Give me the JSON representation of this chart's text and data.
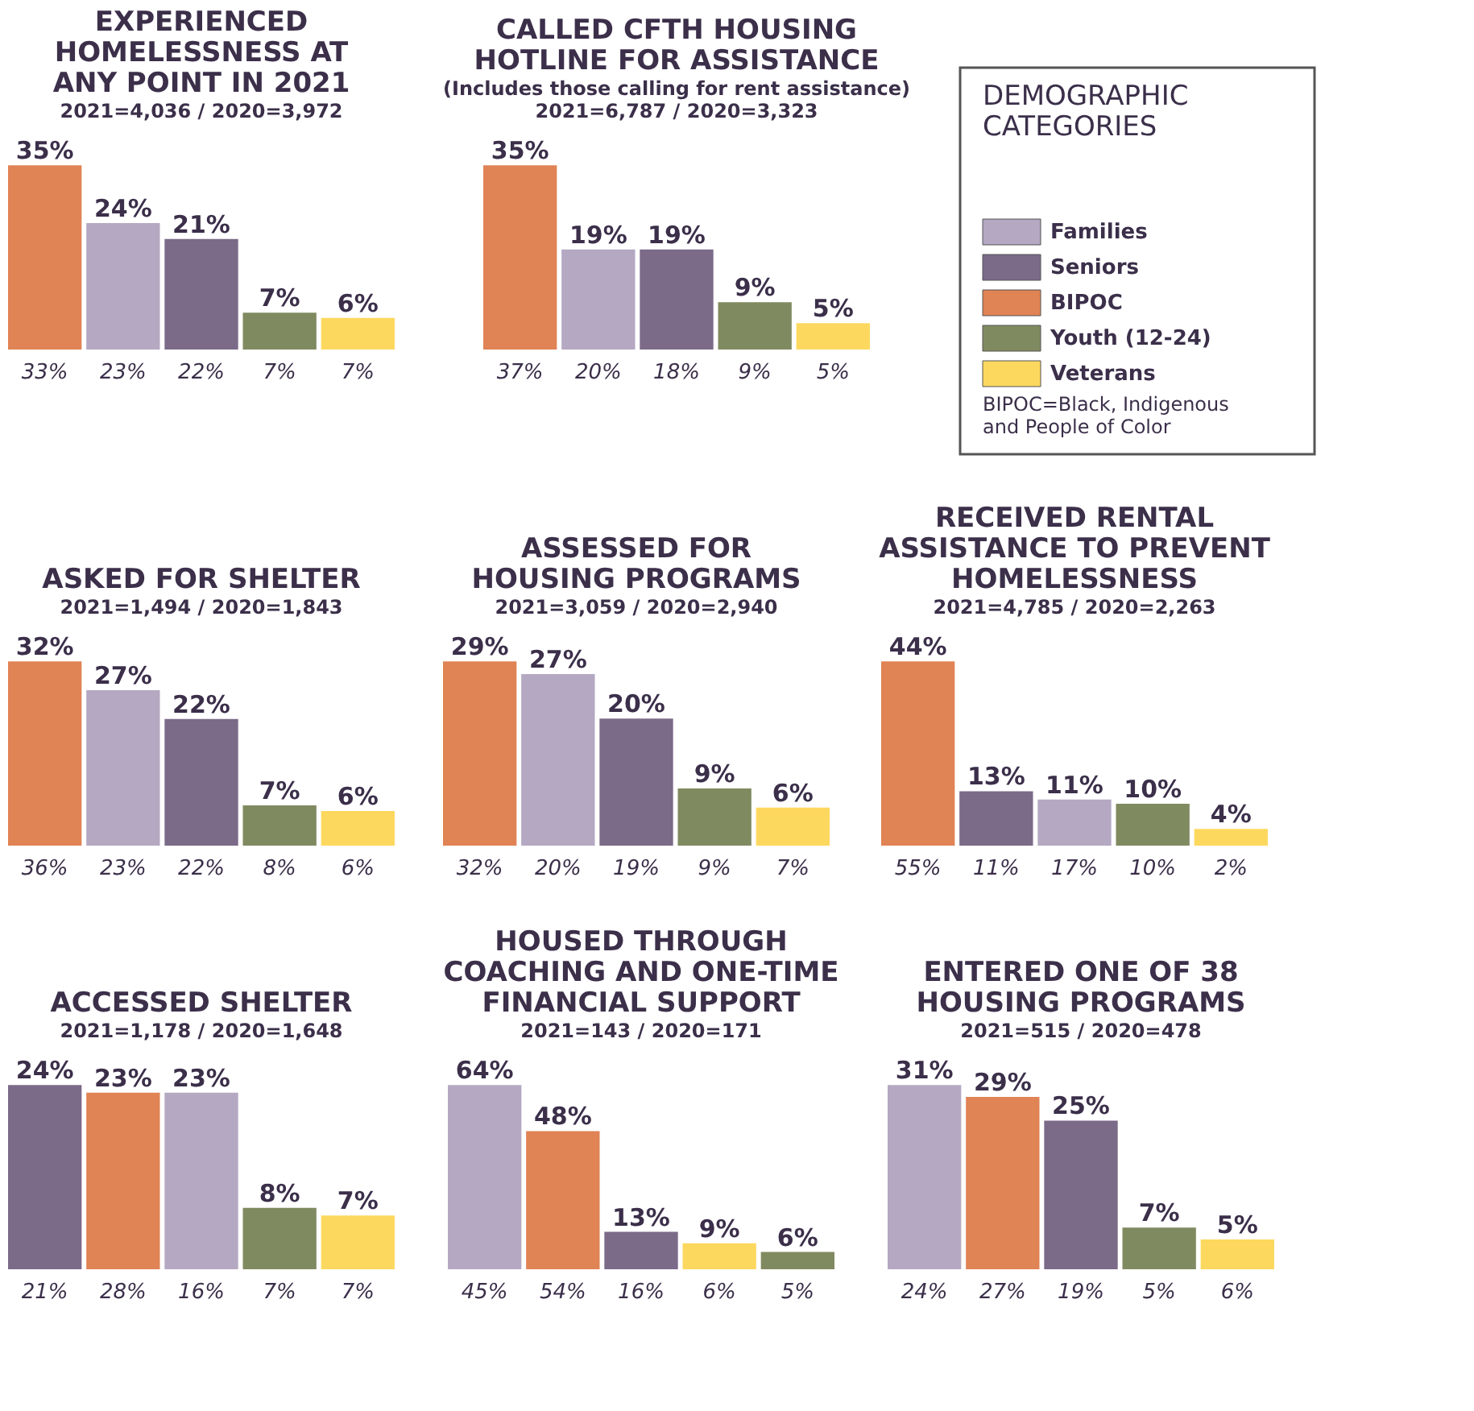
{
  "chart_data": [
    {
      "type": "bar",
      "title": "EXPERIENCED\nHOMELESSNESS AT\nANY POINT IN 2021",
      "subtitle": "2021=4,036 / 2020=3,972",
      "categories": [
        null,
        null,
        null,
        null,
        null
      ],
      "values": [
        35,
        24,
        21,
        7,
        6
      ],
      "colors": [
        "#e08355",
        "#b4a8c2",
        "#7b6a88",
        "#808a60",
        "#fdd85f"
      ],
      "value_labels": [
        "35%",
        "24%",
        "21%",
        "7%",
        "6%"
      ],
      "annotations": [
        "33%",
        "23%",
        "22%",
        "7%",
        "7%"
      ]
    },
    {
      "type": "bar",
      "title": "CALLED CFTH HOUSING\nHOTLINE FOR ASSISTANCE",
      "subtitle": "(Includes those calling for rent assistance)\n2021=6,787 / 2020=3,323",
      "categories": [
        null,
        null,
        null,
        null,
        null
      ],
      "values": [
        35,
        19,
        19,
        9,
        5
      ],
      "colors": [
        "#e08355",
        "#b4a8c2",
        "#7b6a88",
        "#808a60",
        "#fdd85f"
      ],
      "value_labels": [
        "35%",
        "19%",
        "19%",
        "9%",
        "5%"
      ],
      "annotations": [
        "37%",
        "20%",
        "18%",
        "9%",
        "5%"
      ]
    },
    {
      "type": "other",
      "title": "DEMOGRAPHIC\nCATEGORIES",
      "categories": [
        "Families",
        "Seniors",
        "BIPOC",
        "Youth (12-24)",
        "Veterans"
      ],
      "colors": [
        "#b4a8c2",
        "#7b6a88",
        "#e08355",
        "#808a60",
        "#fdd85f"
      ],
      "annotations": [
        "BIPOC=Black, Indigenous\nand People of Color"
      ]
    },
    {
      "type": "bar",
      "title": "ASKED FOR SHELTER",
      "subtitle": "2021=1,494 / 2020=1,843",
      "categories": [
        null,
        null,
        null,
        null,
        null
      ],
      "values": [
        32,
        27,
        22,
        7,
        6
      ],
      "colors": [
        "#e08355",
        "#b4a8c2",
        "#7b6a88",
        "#808a60",
        "#fdd85f"
      ],
      "value_labels": [
        "32%",
        "27%",
        "22%",
        "7%",
        "6%"
      ],
      "annotations": [
        "36%",
        "23%",
        "22%",
        "8%",
        "6%"
      ]
    },
    {
      "type": "bar",
      "title": "ASSESSED FOR\nHOUSING PROGRAMS",
      "subtitle": "2021=3,059 / 2020=2,940",
      "categories": [
        null,
        null,
        null,
        null,
        null
      ],
      "values": [
        29,
        27,
        20,
        9,
        6
      ],
      "colors": [
        "#e08355",
        "#b4a8c2",
        "#7b6a88",
        "#808a60",
        "#fdd85f"
      ],
      "value_labels": [
        "29%",
        "27%",
        "20%",
        "9%",
        "6%"
      ],
      "annotations": [
        "32%",
        "20%",
        "19%",
        "9%",
        "7%"
      ]
    },
    {
      "type": "bar",
      "title": "RECEIVED RENTAL\nASSISTANCE TO PREVENT\nHOMELESSNESS",
      "subtitle": "2021=4,785 / 2020=2,263",
      "categories": [
        null,
        null,
        null,
        null,
        null
      ],
      "values": [
        44,
        13,
        11,
        10,
        4
      ],
      "colors": [
        "#e08355",
        "#7b6a88",
        "#b4a8c2",
        "#808a60",
        "#fdd85f"
      ],
      "value_labels": [
        "44%",
        "13%",
        "11%",
        "10%",
        "4%"
      ],
      "annotations": [
        "55%",
        "11%",
        "17%",
        "10%",
        "2%"
      ]
    },
    {
      "type": "bar",
      "title": "ACCESSED SHELTER",
      "subtitle": "2021=1,178 / 2020=1,648",
      "categories": [
        null,
        null,
        null,
        null,
        null
      ],
      "values": [
        24,
        23,
        23,
        8,
        7
      ],
      "colors": [
        "#7b6a88",
        "#e08355",
        "#b4a8c2",
        "#808a60",
        "#fdd85f"
      ],
      "value_labels": [
        "24%",
        "23%",
        "23%",
        "8%",
        "7%"
      ],
      "annotations": [
        "21%",
        "28%",
        "16%",
        "7%",
        "7%"
      ]
    },
    {
      "type": "bar",
      "title": "HOUSED THROUGH\nCOACHING AND ONE-TIME\nFINANCIAL SUPPORT",
      "subtitle": "2021=143 / 2020=171",
      "categories": [
        null,
        null,
        null,
        null,
        null
      ],
      "values": [
        64,
        48,
        13,
        9,
        6
      ],
      "colors": [
        "#b4a8c2",
        "#e08355",
        "#7b6a88",
        "#fdd85f",
        "#808a60"
      ],
      "value_labels": [
        "64%",
        "48%",
        "13%",
        "9%",
        "6%"
      ],
      "annotations": [
        "45%",
        "54%",
        "16%",
        "6%",
        "5%"
      ]
    },
    {
      "type": "bar",
      "title": "ENTERED ONE OF 38\nHOUSING PROGRAMS",
      "subtitle": "2021=515 / 2020=478",
      "categories": [
        null,
        null,
        null,
        null,
        null
      ],
      "values": [
        31,
        29,
        25,
        7,
        5
      ],
      "colors": [
        "#b4a8c2",
        "#e08355",
        "#7b6a88",
        "#808a60",
        "#fdd85f"
      ],
      "value_labels": [
        "31%",
        "29%",
        "25%",
        "7%",
        "5%"
      ],
      "annotations": [
        "24%",
        "27%",
        "19%",
        "5%",
        "6%"
      ]
    }
  ]
}
